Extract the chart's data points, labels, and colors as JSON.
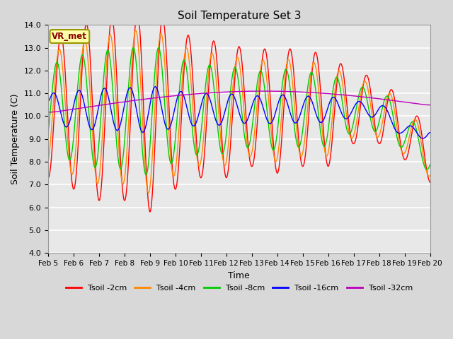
{
  "title": "Soil Temperature Set 3",
  "xlabel": "Time",
  "ylabel": "Soil Temperature (C)",
  "ylim": [
    4.0,
    14.0
  ],
  "yticks": [
    4.0,
    5.0,
    6.0,
    7.0,
    8.0,
    9.0,
    10.0,
    11.0,
    12.0,
    13.0,
    14.0
  ],
  "fig_bg_color": "#d8d8d8",
  "plot_bg_color": "#e8e8e8",
  "legend_labels": [
    "Tsoil -2cm",
    "Tsoil -4cm",
    "Tsoil -8cm",
    "Tsoil -16cm",
    "Tsoil -32cm"
  ],
  "line_colors": [
    "#ff0000",
    "#ff8800",
    "#00cc00",
    "#0000ff",
    "#bb00bb"
  ],
  "annotation_text": "VR_met",
  "annotation_bg": "#ffffaa",
  "annotation_border": "#999900",
  "figsize": [
    6.4,
    4.8
  ],
  "dpi": 100
}
